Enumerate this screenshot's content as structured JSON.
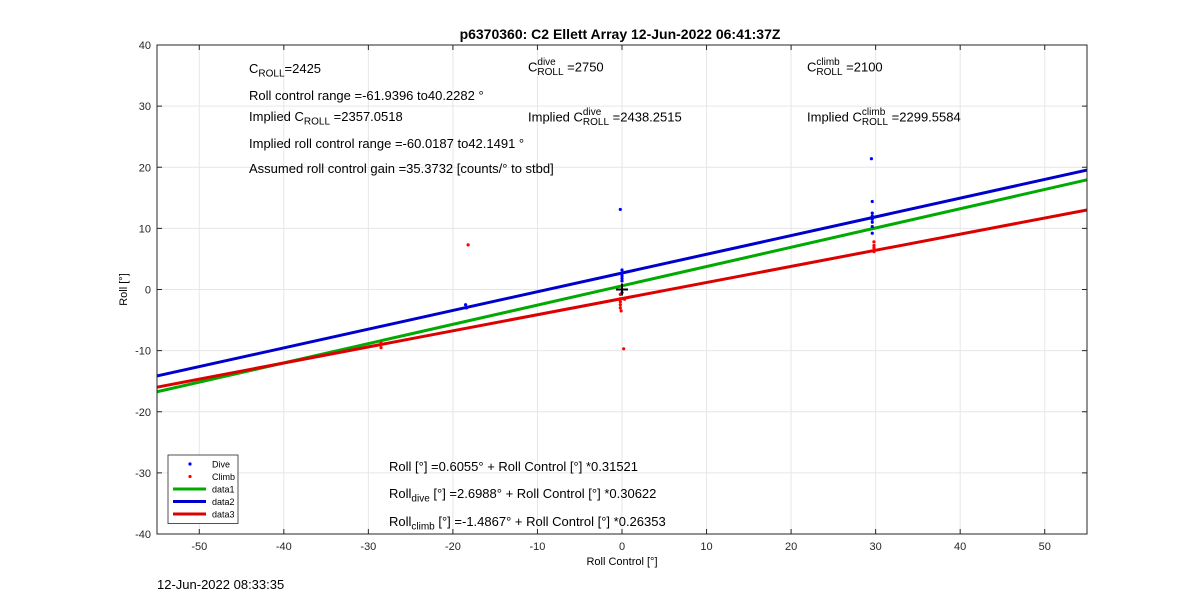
{
  "chart_data": {
    "type": "scatter",
    "title": "p6370360: C2 Ellett Array 12-Jun-2022 06:41:37Z",
    "xlabel": "Roll Control [°]",
    "ylabel": "Roll [°]",
    "xlim": [
      -55,
      55
    ],
    "ylim": [
      -40,
      40
    ],
    "xticks": [
      -50,
      -40,
      -30,
      -20,
      -10,
      0,
      10,
      20,
      30,
      40,
      50
    ],
    "yticks": [
      -40,
      -30,
      -20,
      -10,
      0,
      10,
      20,
      30,
      40
    ],
    "grid": true,
    "legend_position": "bottom-left",
    "series": [
      {
        "name": "Dive",
        "kind": "points",
        "color": "#0000ff",
        "points": [
          [
            -18.5,
            -2.5
          ],
          [
            -18.4,
            -3
          ],
          [
            -0.2,
            13.1
          ],
          [
            0,
            3.2
          ],
          [
            0,
            2.6
          ],
          [
            0,
            2.2
          ],
          [
            0,
            1.8
          ],
          [
            0,
            1.4
          ],
          [
            0,
            -0.5
          ],
          [
            29.5,
            21.4
          ],
          [
            29.6,
            14.4
          ],
          [
            29.6,
            12.5
          ],
          [
            29.6,
            12
          ],
          [
            29.6,
            11.5
          ],
          [
            29.6,
            11
          ],
          [
            29.6,
            10.3
          ],
          [
            29.6,
            9.2
          ]
        ]
      },
      {
        "name": "Climb",
        "kind": "points",
        "color": "#ff0000",
        "points": [
          [
            -18.2,
            7.3
          ],
          [
            -28.5,
            -8.8
          ],
          [
            -28.5,
            -9.5
          ],
          [
            -0.2,
            -0.8
          ],
          [
            -0.2,
            -1.5
          ],
          [
            -0.2,
            -2
          ],
          [
            -0.2,
            -2.5
          ],
          [
            -0.2,
            -3
          ],
          [
            -0.1,
            -3.5
          ],
          [
            0.3,
            -1.6
          ],
          [
            0.2,
            -9.7
          ],
          [
            29.8,
            7.8
          ],
          [
            29.8,
            7.2
          ],
          [
            29.8,
            6.8
          ],
          [
            29.8,
            6.2
          ]
        ]
      },
      {
        "name": "data1",
        "kind": "line",
        "color": "#00aa00",
        "intercept": 0.6055,
        "slope": 0.31521
      },
      {
        "name": "data2",
        "kind": "line",
        "color": "#0000cc",
        "intercept": 2.6988,
        "slope": 0.30622
      },
      {
        "name": "data3",
        "kind": "line",
        "color": "#dd0000",
        "intercept": -1.4867,
        "slope": 0.26353
      }
    ],
    "marker": {
      "x": 0,
      "y": 0,
      "symbol": "+",
      "color": "#000000"
    }
  },
  "annotations": {
    "c_roll_label": "C",
    "c_roll_sub": "ROLL",
    "c_roll_value": "=2425",
    "roll_range": "Roll control range =-61.9396 to40.2282 °",
    "implied_c_prefix": "Implied C",
    "implied_c_sub": "ROLL",
    "implied_c_value": "=2357.0518",
    "implied_range": "Implied roll control range =-60.0187 to42.1491 °",
    "gain": "Assumed roll control gain =35.3732 [counts/° to stbd]",
    "c_dive_label": "C",
    "c_dive_sup": "dive",
    "c_dive_sub": "ROLL",
    "c_dive_value": "=2750",
    "implied_dive_prefix": "Implied C",
    "implied_dive_sup": "dive",
    "implied_dive_sub": "ROLL",
    "implied_dive_value": "=2438.2515",
    "c_climb_label": "C",
    "c_climb_sup": "climb",
    "c_climb_sub": "ROLL",
    "c_climb_value": "=2100",
    "implied_climb_prefix": "Implied C",
    "implied_climb_sup": "climb",
    "implied_climb_sub": "ROLL",
    "implied_climb_value": "=2299.5584",
    "eq_all": "Roll [°] =0.6055° + Roll Control [°] *0.31521",
    "eq_dive_prefix": "Roll",
    "eq_dive_sub": "dive",
    "eq_dive_rest": " [°] =2.6988° + Roll Control [°] *0.30622",
    "eq_climb_prefix": "Roll",
    "eq_climb_sub": "climb",
    "eq_climb_rest": " [°] =-1.4867° + Roll Control [°] *0.26353"
  },
  "timestamp": "12-Jun-2022 08:33:35"
}
